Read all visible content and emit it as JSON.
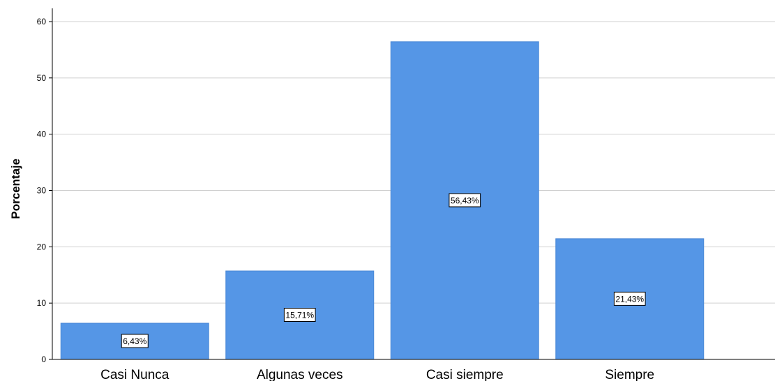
{
  "chart_data": {
    "type": "bar",
    "title": "",
    "xlabel": "",
    "ylabel": "Porcentaje",
    "categories": [
      "Casi Nunca",
      "Algunas veces",
      "Casi siempre",
      "Siempre"
    ],
    "values": [
      6.43,
      15.71,
      56.43,
      21.43
    ],
    "data_labels": [
      "6,43%",
      "15,71%",
      "56,43%",
      "21,43%"
    ],
    "ylim": [
      0,
      60
    ],
    "yticks": [
      0,
      10,
      20,
      30,
      40,
      50,
      60
    ],
    "ytick_labels": [
      "0",
      "10",
      "20",
      "30",
      "40",
      "50",
      "60"
    ],
    "grid": true,
    "legend": "none",
    "colors": {
      "bar_fill": "#5596E6",
      "bar_stroke": "#4A88D6",
      "grid": "#D0D0D0",
      "axis": "#000000",
      "label_box_fill": "#FFFFFF",
      "label_box_stroke": "#000000"
    }
  }
}
